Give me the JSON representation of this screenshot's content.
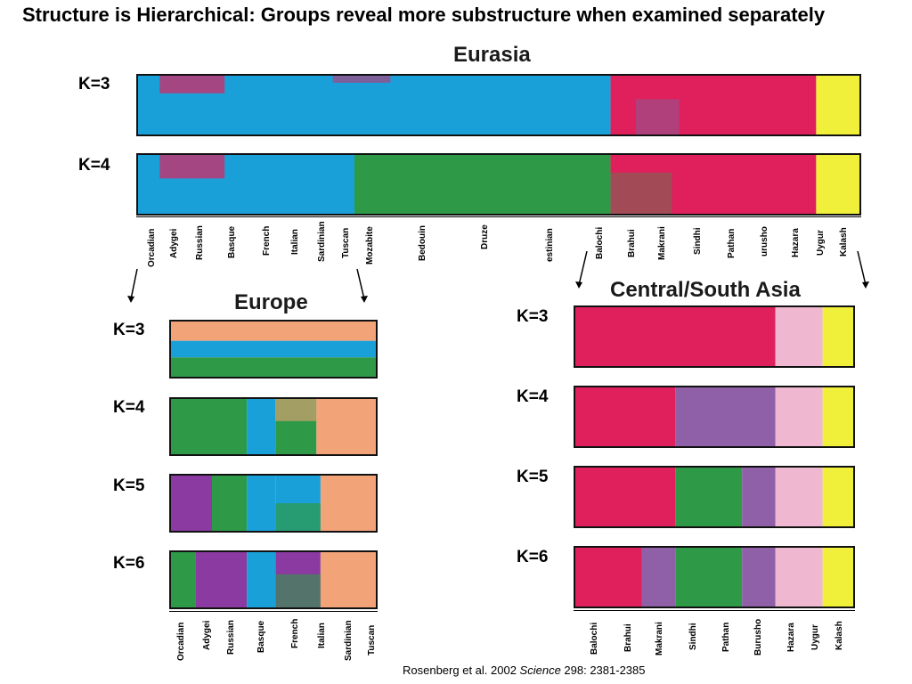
{
  "slide": {
    "title": "Structure is Hierarchical: Groups reveal more substructure when examined separately"
  },
  "citation": {
    "before": "Rosenberg et al. 2002 ",
    "journal": "Science",
    "after": " 298: 2381-2385"
  },
  "colors": {
    "blue": "#1aa0d8",
    "pink": "#e0205c",
    "yellow": "#f0ef3a",
    "green": "#2e9a48",
    "orange": "#f2a378",
    "purple": "#8a3aa0",
    "lightpink": "#f0b8d0",
    "lavender": "#8f5fa8"
  },
  "eurasia": {
    "title": "Eurasia",
    "k_labels": [
      "K=3",
      "K=4"
    ],
    "populations": [
      "Orcadian",
      "Adygei",
      "Russian",
      "Basque",
      "French",
      "Italian",
      "Sardinian",
      "Tuscan",
      "Mozabite",
      "Bedouin",
      "Druze",
      "estinian",
      "Balochi",
      "Brahui",
      "Makrani",
      "Sindhi",
      "Pathan",
      "urusho",
      "Hazara",
      "Uygur",
      "Kalash"
    ]
  },
  "europe": {
    "title": "Europe",
    "k_labels": [
      "K=3",
      "K=4",
      "K=5",
      "K=6"
    ],
    "populations": [
      "Orcadian",
      "Adygei",
      "Russian",
      "Basque",
      "French",
      "Italian",
      "Sardinian",
      "Tuscan"
    ]
  },
  "central_south_asia": {
    "title": "Central/South Asia",
    "k_labels": [
      "K=3",
      "K=4",
      "K=5",
      "K=6"
    ],
    "populations": [
      "Balochi",
      "Brahui",
      "Makrani",
      "Sindhi",
      "Pathan",
      "Burusho",
      "Hazara",
      "Uygur",
      "Kalash"
    ]
  }
}
